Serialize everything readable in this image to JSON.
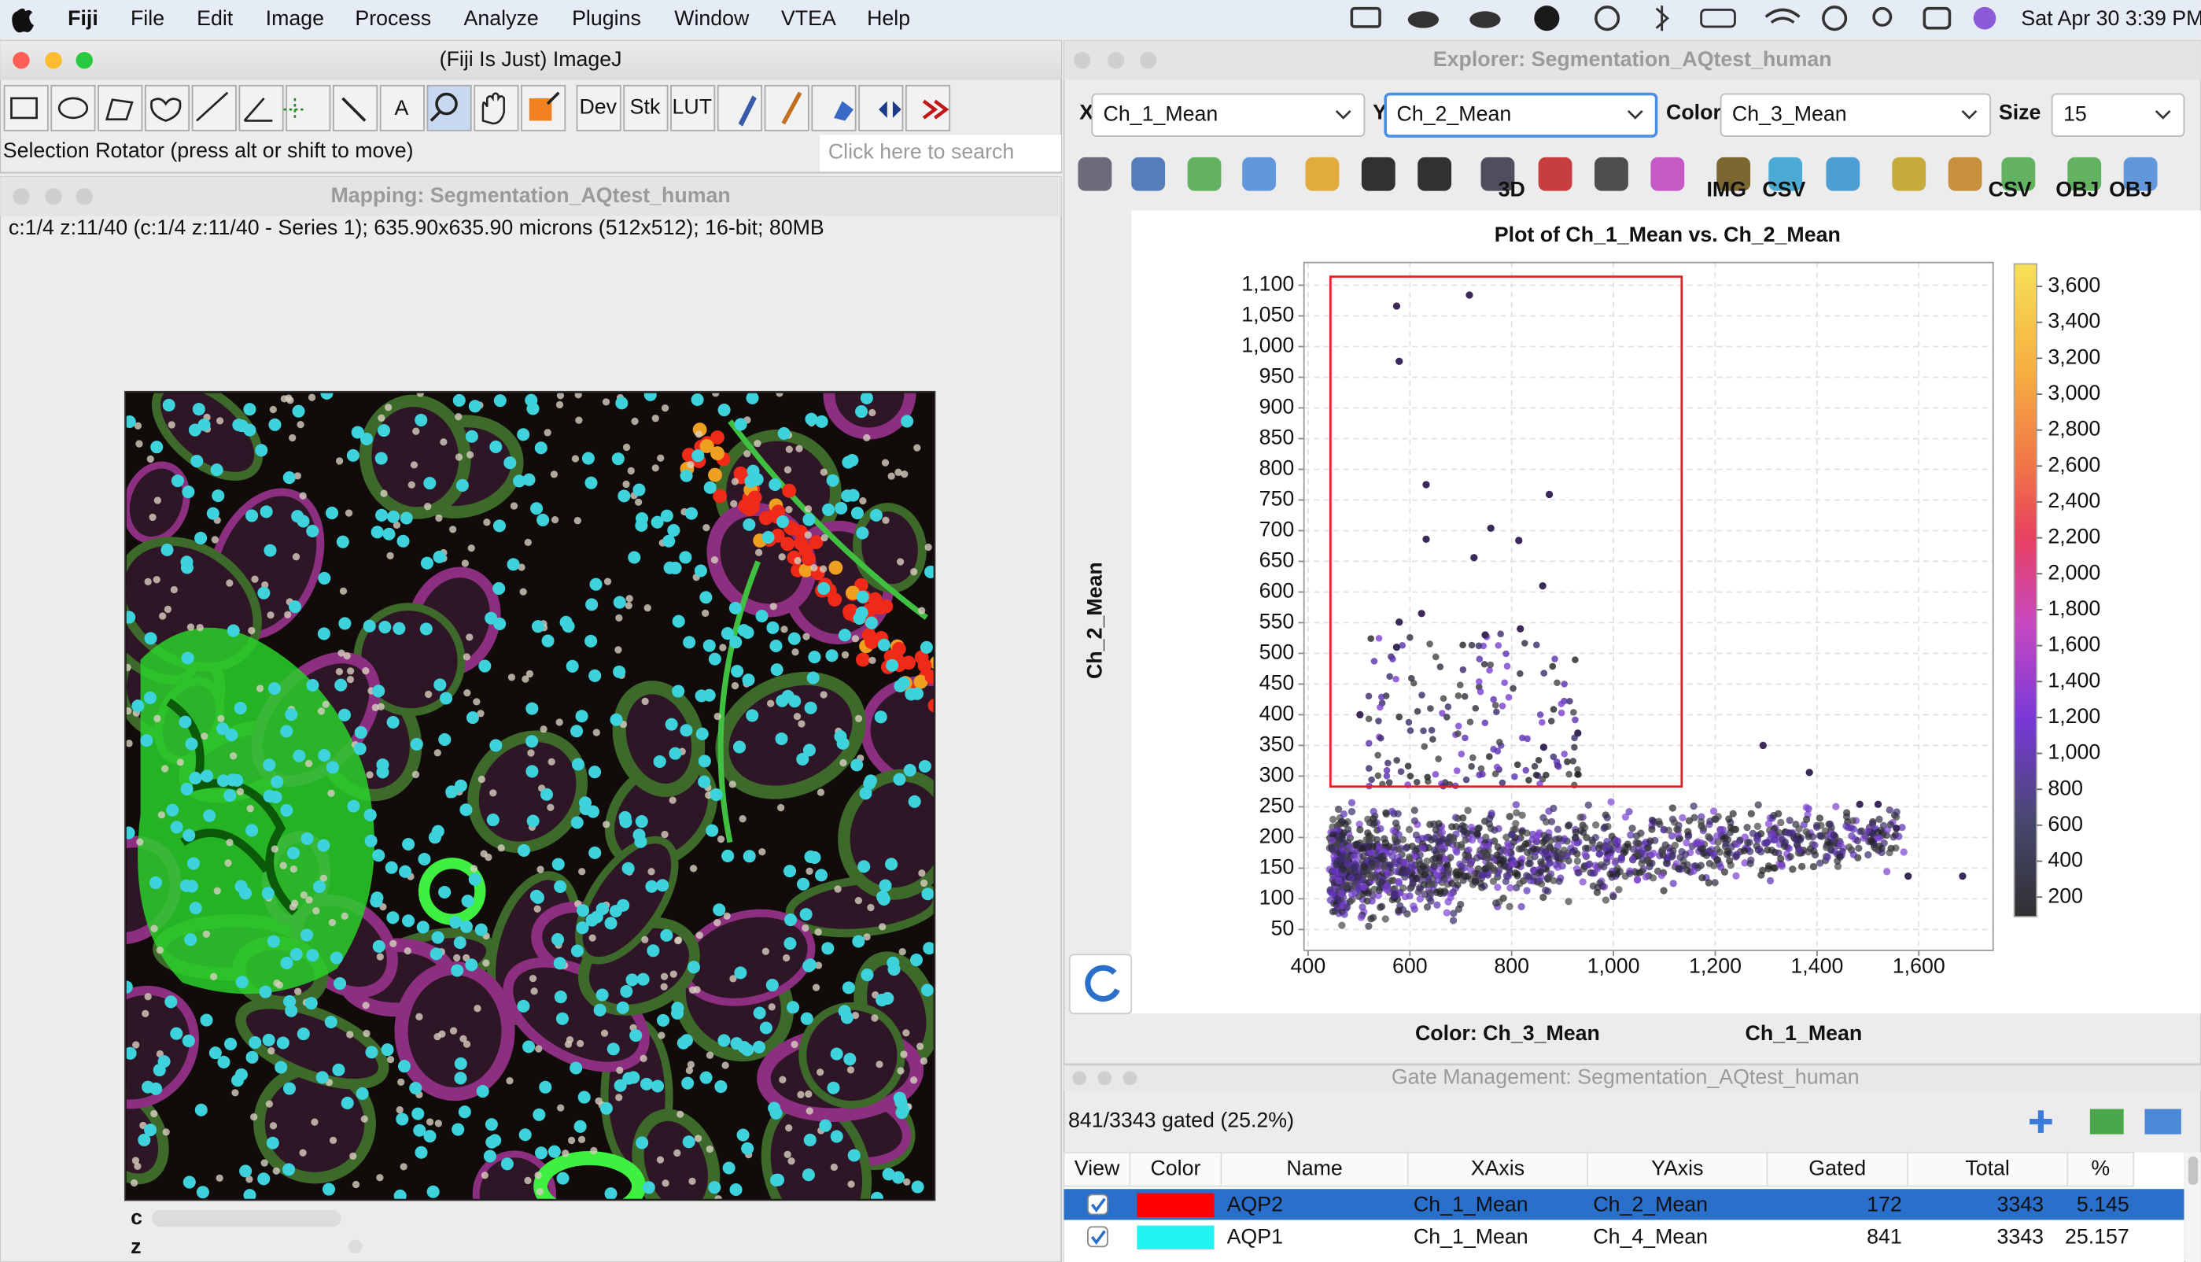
{
  "menubar": {
    "items": [
      "Fiji",
      "File",
      "Edit",
      "Image",
      "Process",
      "Analyze",
      "Plugins",
      "Window",
      "VTEA",
      "Help"
    ],
    "clock": "Sat Apr 30  3:39 PM"
  },
  "imagej": {
    "title": "(Fiji Is Just) ImageJ",
    "tool_labels": [
      "Dev",
      "Stk",
      "LUT"
    ],
    "status": "Selection Rotator (press alt or shift to move)",
    "search": "Click here to search"
  },
  "mapping": {
    "title": "Mapping: Segmentation_AQtest_human",
    "info": "c:1/4 z:11/40 (c:1/4  z:11/40 - Series 1); 635.90x635.90 microns (512x512); 16-bit; 80MB",
    "sliders": [
      "c",
      "z"
    ]
  },
  "explorer": {
    "title": "Explorer: Segmentation_AQtest_human",
    "controls": [
      {
        "label": "X",
        "value": "Ch_1_Mean"
      },
      {
        "label": "Y",
        "value": "Ch_2_Mean"
      },
      {
        "label": "Color",
        "value": "Ch_3_Mean"
      },
      {
        "label": "Size",
        "value": "15"
      }
    ],
    "icon_labels": [
      "3D",
      "IMG",
      "CSV",
      "CSV",
      "OBJ",
      "OBJ"
    ],
    "chart": {
      "type": "scatter",
      "title": "Plot of Ch_1_Mean vs. Ch_2_Mean",
      "y_axis_label": "Ch_2_Mean",
      "xlim": [
        392,
        1746
      ],
      "xticks": [
        400,
        600,
        800,
        {
          "value": 1000,
          "label": "1,000"
        },
        {
          "value": 1200,
          "label": "1,200"
        },
        {
          "value": 1400,
          "label": "1,400"
        },
        {
          "value": 1600,
          "label": "1,600"
        }
      ],
      "ylim": [
        16,
        1137
      ],
      "yticks": [
        50,
        100,
        150,
        200,
        250,
        300,
        350,
        400,
        450,
        500,
        550,
        600,
        650,
        700,
        750,
        800,
        850,
        900,
        950,
        {
          "value": 1000,
          "label": "1,000"
        },
        {
          "value": 1050,
          "label": "1,050"
        },
        {
          "value": 1100,
          "label": "1,100"
        }
      ],
      "grid": true,
      "point_color": "#3a2a5a",
      "points": [
        [
          574,
          1066
        ],
        [
          717,
          1084
        ],
        [
          579,
          976
        ],
        [
          632,
          775
        ],
        [
          874,
          759
        ],
        [
          632,
          686
        ],
        [
          759,
          704
        ],
        [
          814,
          684
        ],
        [
          726,
          656
        ],
        [
          861,
          610
        ],
        [
          623,
          565
        ],
        [
          579,
          551
        ],
        [
          574,
          510
        ],
        [
          748,
          530
        ],
        [
          817,
          540
        ],
        [
          502,
          400
        ],
        [
          1294,
          350
        ],
        [
          1385,
          306
        ],
        [
          1484,
          254
        ],
        [
          1520,
          254
        ],
        [
          1556,
          215
        ],
        [
          1579,
          137
        ],
        [
          1686,
          137
        ],
        [
          863,
          347
        ],
        [
          930,
          370
        ]
      ],
      "gate": {
        "x": [
          444,
          1134
        ],
        "y": [
          283,
          1114
        ],
        "color": "#e02020"
      },
      "colorbar": {
        "lim": [
          91,
          3725
        ],
        "ticks": [
          200,
          400,
          600,
          800,
          {
            "value": 1000,
            "label": "1,000"
          },
          {
            "value": 1200,
            "label": "1,200"
          },
          {
            "value": 1400,
            "label": "1,400"
          },
          {
            "value": 1600,
            "label": "1,600"
          },
          {
            "value": 1800,
            "label": "1,800"
          },
          {
            "value": 2000,
            "label": "2,000"
          },
          {
            "value": 2200,
            "label": "2,200"
          },
          {
            "value": 2400,
            "label": "2,400"
          },
          {
            "value": 2600,
            "label": "2,600"
          },
          {
            "value": 2800,
            "label": "2,800"
          },
          {
            "value": 3000,
            "label": "3,000"
          },
          {
            "value": 3200,
            "label": "3,200"
          },
          {
            "value": 3400,
            "label": "3,400"
          },
          {
            "value": 3600,
            "label": "3,600"
          }
        ]
      },
      "color_label": "Color: Ch_3_Mean",
      "x_axis_label": "Ch_1_Mean"
    }
  },
  "gates": {
    "title": "Gate Management: Segmentation_AQtest_human",
    "summary": "841/3343 gated (25.2%)",
    "columns": [
      "View",
      "Color",
      "Name",
      "XAxis",
      "YAxis",
      "Gated",
      "Total",
      "%"
    ],
    "rows": [
      {
        "color": "#ff0000",
        "name": "AQP2",
        "xaxis": "Ch_1_Mean",
        "yaxis": "Ch_2_Mean",
        "gated": 172,
        "total": 3343,
        "percent": 5.145
      },
      {
        "color": "#22f2f2",
        "name": "AQP1",
        "xaxis": "Ch_1_Mean",
        "yaxis": "Ch_4_Mean",
        "gated": 841,
        "total": 3343,
        "percent": 25.157
      }
    ]
  }
}
